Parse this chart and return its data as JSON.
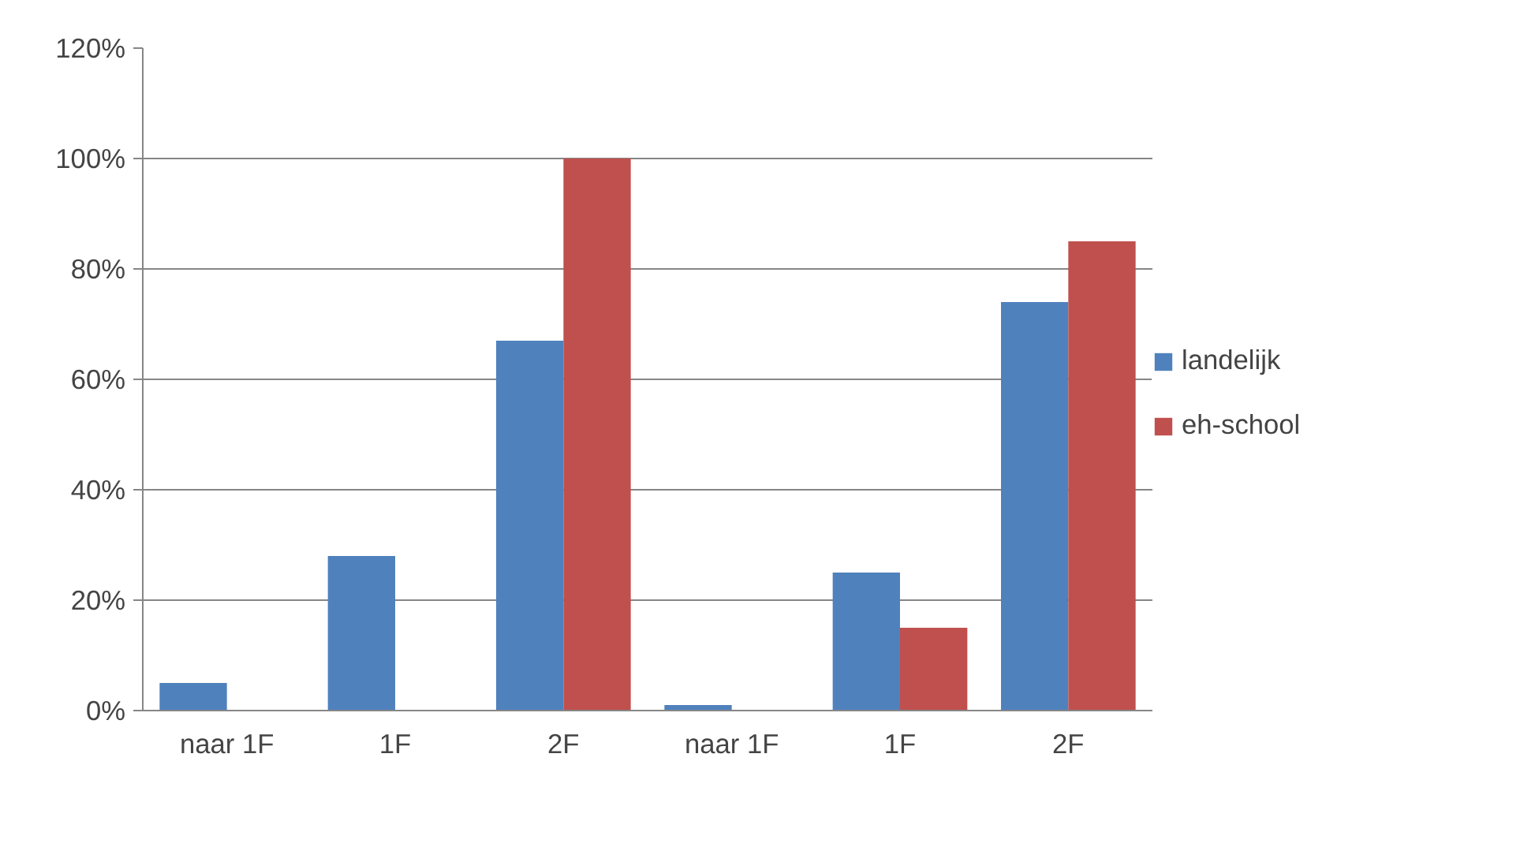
{
  "chart_data": {
    "type": "bar",
    "categories": [
      "naar 1F",
      "1F",
      "2F",
      "naar 1F",
      "1F",
      "2F"
    ],
    "series": [
      {
        "name": "landelijk",
        "color": "#4f81bd",
        "values": [
          5,
          28,
          67,
          1,
          25,
          74
        ]
      },
      {
        "name": "eh-school",
        "color": "#c0504d",
        "values": [
          0,
          0,
          100,
          0,
          15,
          85
        ]
      }
    ],
    "ylim": [
      0,
      120
    ],
    "yticks": [
      {
        "value": 0,
        "label": "0%"
      },
      {
        "value": 20,
        "label": "20%"
      },
      {
        "value": 40,
        "label": "40%"
      },
      {
        "value": 60,
        "label": "60%"
      },
      {
        "value": 80,
        "label": "80%"
      },
      {
        "value": 100,
        "label": "100%"
      },
      {
        "value": 120,
        "label": "120%"
      }
    ],
    "grid": "y",
    "legend": "right"
  }
}
